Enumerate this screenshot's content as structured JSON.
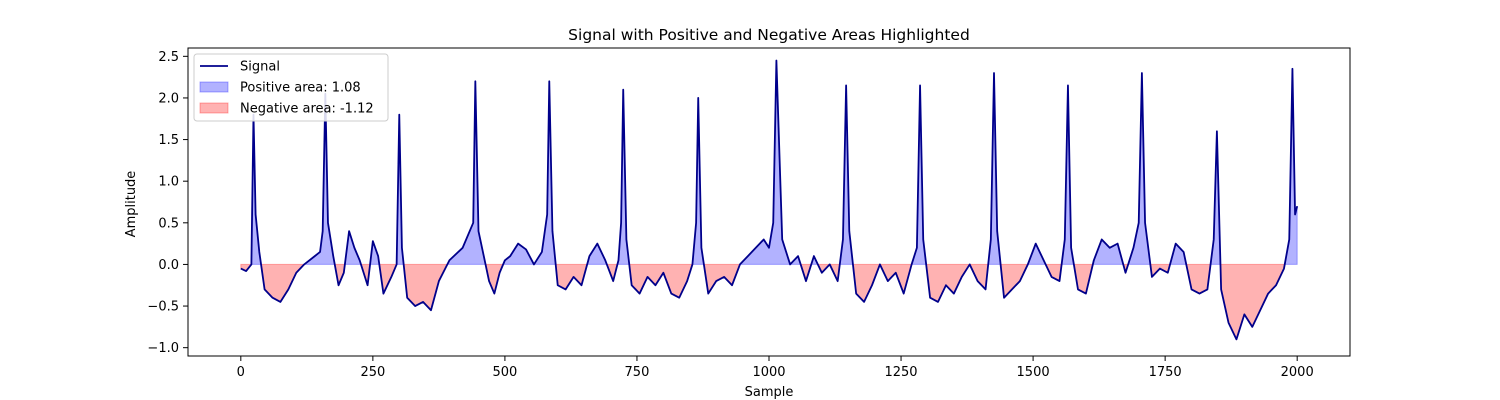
{
  "chart_data": {
    "type": "area",
    "title": "Signal with Positive and Negative Areas Highlighted",
    "xlabel": "Sample",
    "ylabel": "Amplitude",
    "xlim": [
      -100,
      2100
    ],
    "ylim": [
      -1.1,
      2.6
    ],
    "xticks": [
      0,
      250,
      500,
      750,
      1000,
      1250,
      1500,
      1750,
      2000
    ],
    "xtick_labels": [
      "0",
      "250",
      "500",
      "750",
      "1000",
      "1250",
      "1500",
      "1750",
      "2000"
    ],
    "yticks": [
      -1.0,
      -0.5,
      0.0,
      0.5,
      1.0,
      1.5,
      2.0,
      2.5
    ],
    "ytick_labels": [
      "−1.0",
      "−0.5",
      "0.0",
      "0.5",
      "1.0",
      "1.5",
      "2.0",
      "2.5"
    ],
    "grid": false,
    "legend_position": "top-left",
    "colors": {
      "signal": "#00008b",
      "positive": "#0000ff",
      "negative": "#ff0000"
    },
    "series": [
      {
        "name": "Signal",
        "role": "signal"
      },
      {
        "name": "Positive area: 1.08",
        "role": "positive"
      },
      {
        "name": "Negative area: -1.12",
        "role": "negative"
      }
    ],
    "x": [
      0,
      10,
      20,
      24,
      28,
      35,
      45,
      60,
      75,
      90,
      105,
      120,
      140,
      150,
      155,
      160,
      165,
      175,
      185,
      195,
      205,
      215,
      225,
      240,
      250,
      260,
      270,
      285,
      295,
      300,
      305,
      315,
      330,
      345,
      360,
      375,
      395,
      420,
      440,
      444,
      450,
      460,
      470,
      480,
      490,
      500,
      510,
      525,
      540,
      555,
      570,
      580,
      584,
      590,
      600,
      615,
      630,
      645,
      660,
      675,
      690,
      705,
      715,
      720,
      724,
      730,
      740,
      755,
      770,
      785,
      800,
      815,
      830,
      845,
      855,
      862,
      866,
      872,
      885,
      900,
      915,
      930,
      945,
      960,
      975,
      990,
      1000,
      1008,
      1014,
      1025,
      1040,
      1055,
      1070,
      1085,
      1100,
      1115,
      1130,
      1140,
      1146,
      1152,
      1165,
      1180,
      1195,
      1210,
      1225,
      1240,
      1255,
      1270,
      1280,
      1286,
      1292,
      1305,
      1320,
      1335,
      1350,
      1365,
      1380,
      1395,
      1410,
      1420,
      1426,
      1432,
      1445,
      1460,
      1475,
      1490,
      1505,
      1520,
      1535,
      1550,
      1560,
      1566,
      1572,
      1585,
      1600,
      1615,
      1630,
      1645,
      1660,
      1675,
      1690,
      1700,
      1706,
      1712,
      1725,
      1740,
      1755,
      1770,
      1785,
      1800,
      1815,
      1830,
      1842,
      1848,
      1856,
      1870,
      1885,
      1900,
      1915,
      1930,
      1945,
      1960,
      1975,
      1985,
      1991,
      1996,
      2000
    ],
    "values": [
      -0.05,
      -0.08,
      0.0,
      1.8,
      0.6,
      0.15,
      -0.3,
      -0.4,
      -0.45,
      -0.3,
      -0.1,
      0.0,
      0.1,
      0.15,
      0.4,
      2.05,
      0.5,
      0.1,
      -0.25,
      -0.1,
      0.4,
      0.2,
      0.05,
      -0.25,
      0.28,
      0.1,
      -0.35,
      -0.15,
      0.0,
      1.8,
      0.2,
      -0.4,
      -0.5,
      -0.45,
      -0.55,
      -0.2,
      0.05,
      0.2,
      0.5,
      2.2,
      0.4,
      0.1,
      -0.2,
      -0.35,
      -0.1,
      0.05,
      0.1,
      0.25,
      0.18,
      0.0,
      0.15,
      0.6,
      2.2,
      0.4,
      -0.25,
      -0.3,
      -0.15,
      -0.25,
      0.1,
      0.25,
      0.05,
      -0.2,
      0.05,
      0.5,
      2.1,
      0.3,
      -0.25,
      -0.35,
      -0.15,
      -0.25,
      -0.1,
      -0.35,
      -0.4,
      -0.2,
      0.0,
      0.5,
      2.0,
      0.2,
      -0.35,
      -0.2,
      -0.15,
      -0.25,
      0.0,
      0.1,
      0.2,
      0.3,
      0.2,
      0.5,
      2.45,
      0.3,
      0.0,
      0.1,
      -0.2,
      0.1,
      -0.1,
      0.0,
      -0.2,
      0.3,
      2.15,
      0.4,
      -0.35,
      -0.45,
      -0.25,
      0.0,
      -0.2,
      -0.1,
      -0.35,
      0.0,
      0.2,
      2.15,
      0.3,
      -0.4,
      -0.45,
      -0.25,
      -0.35,
      -0.15,
      0.0,
      -0.2,
      -0.3,
      0.3,
      2.3,
      0.4,
      -0.4,
      -0.3,
      -0.2,
      0.0,
      0.25,
      0.05,
      -0.15,
      -0.2,
      0.3,
      2.15,
      0.2,
      -0.3,
      -0.35,
      0.05,
      0.3,
      0.2,
      0.25,
      -0.1,
      0.2,
      0.5,
      2.3,
      0.5,
      -0.15,
      -0.05,
      -0.1,
      0.25,
      0.15,
      -0.3,
      -0.35,
      -0.3,
      0.3,
      1.6,
      -0.3,
      -0.7,
      -0.9,
      -0.6,
      -0.75,
      -0.55,
      -0.35,
      -0.25,
      -0.05,
      0.3,
      2.35,
      0.6,
      0.7
    ]
  }
}
